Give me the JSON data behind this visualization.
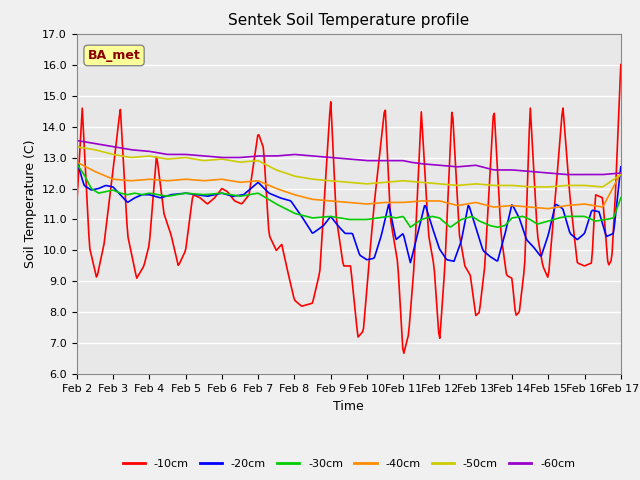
{
  "title": "Sentek Soil Temperature profile",
  "xlabel": "Time",
  "ylabel": "Soil Temperature (C)",
  "ylim": [
    6.0,
    17.0
  ],
  "yticks": [
    6.0,
    7.0,
    8.0,
    9.0,
    10.0,
    11.0,
    12.0,
    13.0,
    14.0,
    15.0,
    16.0,
    17.0
  ],
  "xtick_labels": [
    "Feb 2",
    "Feb 3",
    "Feb 4",
    "Feb 5",
    "Feb 6",
    "Feb 7",
    "Feb 8",
    "Feb 9",
    "Feb 10",
    "Feb 11",
    "Feb 12",
    "Feb 13",
    "Feb 14",
    "Feb 15",
    "Feb 16",
    "Feb 17"
  ],
  "annotation_text": "BA_met",
  "annotation_color": "#8B0000",
  "annotation_bg": "#FFFF99",
  "colors": {
    "-10cm": "#FF0000",
    "-20cm": "#0000FF",
    "-30cm": "#00CC00",
    "-40cm": "#FF8C00",
    "-50cm": "#CCCC00",
    "-60cm": "#9900CC"
  },
  "plot_bg": "#E8E8E8",
  "fig_bg": "#F0F0F0",
  "grid_color": "#FFFFFF",
  "title_fontsize": 11,
  "axis_fontsize": 9,
  "tick_fontsize": 8,
  "legend_fontsize": 8,
  "linewidth": 1.2
}
